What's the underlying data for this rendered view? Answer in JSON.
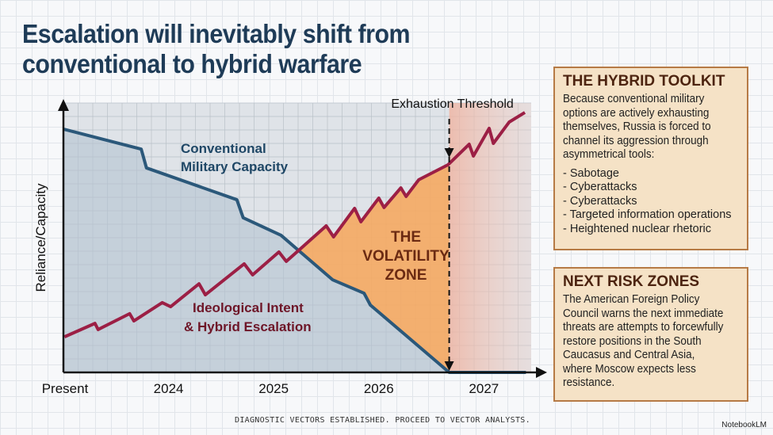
{
  "title": "Escalation will inevitably shift from conventional to hybrid warfare",
  "chart_data": {
    "type": "line",
    "ylabel": "Reliance/Capacity",
    "xlabel": "",
    "x_tick_labels": [
      {
        "x": 2023,
        "label": "Present"
      },
      {
        "x": 2024,
        "label": "2024"
      },
      {
        "x": 2025,
        "label": "2025"
      },
      {
        "x": 2026,
        "label": "2026"
      },
      {
        "x": 2027,
        "label": "2027"
      }
    ],
    "xlim": [
      2023,
      2027.45
    ],
    "ylim": [
      0,
      100
    ],
    "grid": true,
    "series": [
      {
        "name": "Conventional Military Capacity",
        "color": "#2b587a",
        "points": [
          [
            2023.0,
            90.3
          ],
          [
            2023.74,
            82.9
          ],
          [
            2023.79,
            75.9
          ],
          [
            2024.65,
            64.1
          ],
          [
            2024.71,
            57.4
          ],
          [
            2025.07,
            50.9
          ],
          [
            2025.56,
            34.4
          ],
          [
            2025.86,
            29.4
          ],
          [
            2025.92,
            25
          ],
          [
            2026.67,
            0
          ],
          [
            2027.4,
            0
          ]
        ]
      },
      {
        "name": "Ideological Intent & Hybrid Escalation",
        "color": "#9c1f45",
        "points": [
          [
            2023.01,
            13.2
          ],
          [
            2023.3,
            18.2
          ],
          [
            2023.33,
            15.9
          ],
          [
            2023.63,
            21.8
          ],
          [
            2023.67,
            19.1
          ],
          [
            2023.94,
            25.9
          ],
          [
            2024.02,
            24.4
          ],
          [
            2024.29,
            32.9
          ],
          [
            2024.35,
            28.8
          ],
          [
            2024.72,
            40.3
          ],
          [
            2024.8,
            36.2
          ],
          [
            2025.05,
            44.7
          ],
          [
            2025.12,
            41.2
          ],
          [
            2025.5,
            54.4
          ],
          [
            2025.57,
            50.3
          ],
          [
            2025.77,
            60.9
          ],
          [
            2025.83,
            55.9
          ],
          [
            2026.0,
            64.7
          ],
          [
            2026.05,
            61.2
          ],
          [
            2026.21,
            68.5
          ],
          [
            2026.26,
            65.3
          ],
          [
            2026.38,
            71.5
          ],
          [
            2026.66,
            77.1
          ],
          [
            2026.86,
            84.7
          ],
          [
            2026.9,
            80.3
          ],
          [
            2027.05,
            90.6
          ],
          [
            2027.09,
            85.0
          ],
          [
            2027.24,
            92.9
          ],
          [
            2027.39,
            96.5
          ]
        ]
      }
    ],
    "annotations": {
      "threshold_x": 2026.67,
      "threshold_label": "Exhaustion Threshold",
      "zone_label": [
        "THE",
        "VOLATILITY",
        "ZONE"
      ],
      "zone_color": "#f5a862"
    }
  },
  "toolkit": {
    "heading": "THE HYBRID TOOLKIT",
    "body": "Because conventional military options are actively exhausting themselves, Russia is forced to channel its aggression through asymmetrical tools:",
    "items": [
      "- Sabotage",
      "- Cyberattacks",
      "- Cyberattacks",
      "- Targeted information operations",
      "- Heightened nuclear rhetoric"
    ]
  },
  "risk": {
    "heading": "NEXT RISK ZONES",
    "body": "The American Foreign Policy Council warns the next immediate threats are attempts to forcewfully restore positions in the South Caucasus and Central Asia, where Moscow expects less resistance."
  },
  "footer": "DIAGNOSTIC VECTORS ESTABLISHED. PROCEED TO VECTOR ANALYSTS.",
  "brand": "NotebookLM"
}
